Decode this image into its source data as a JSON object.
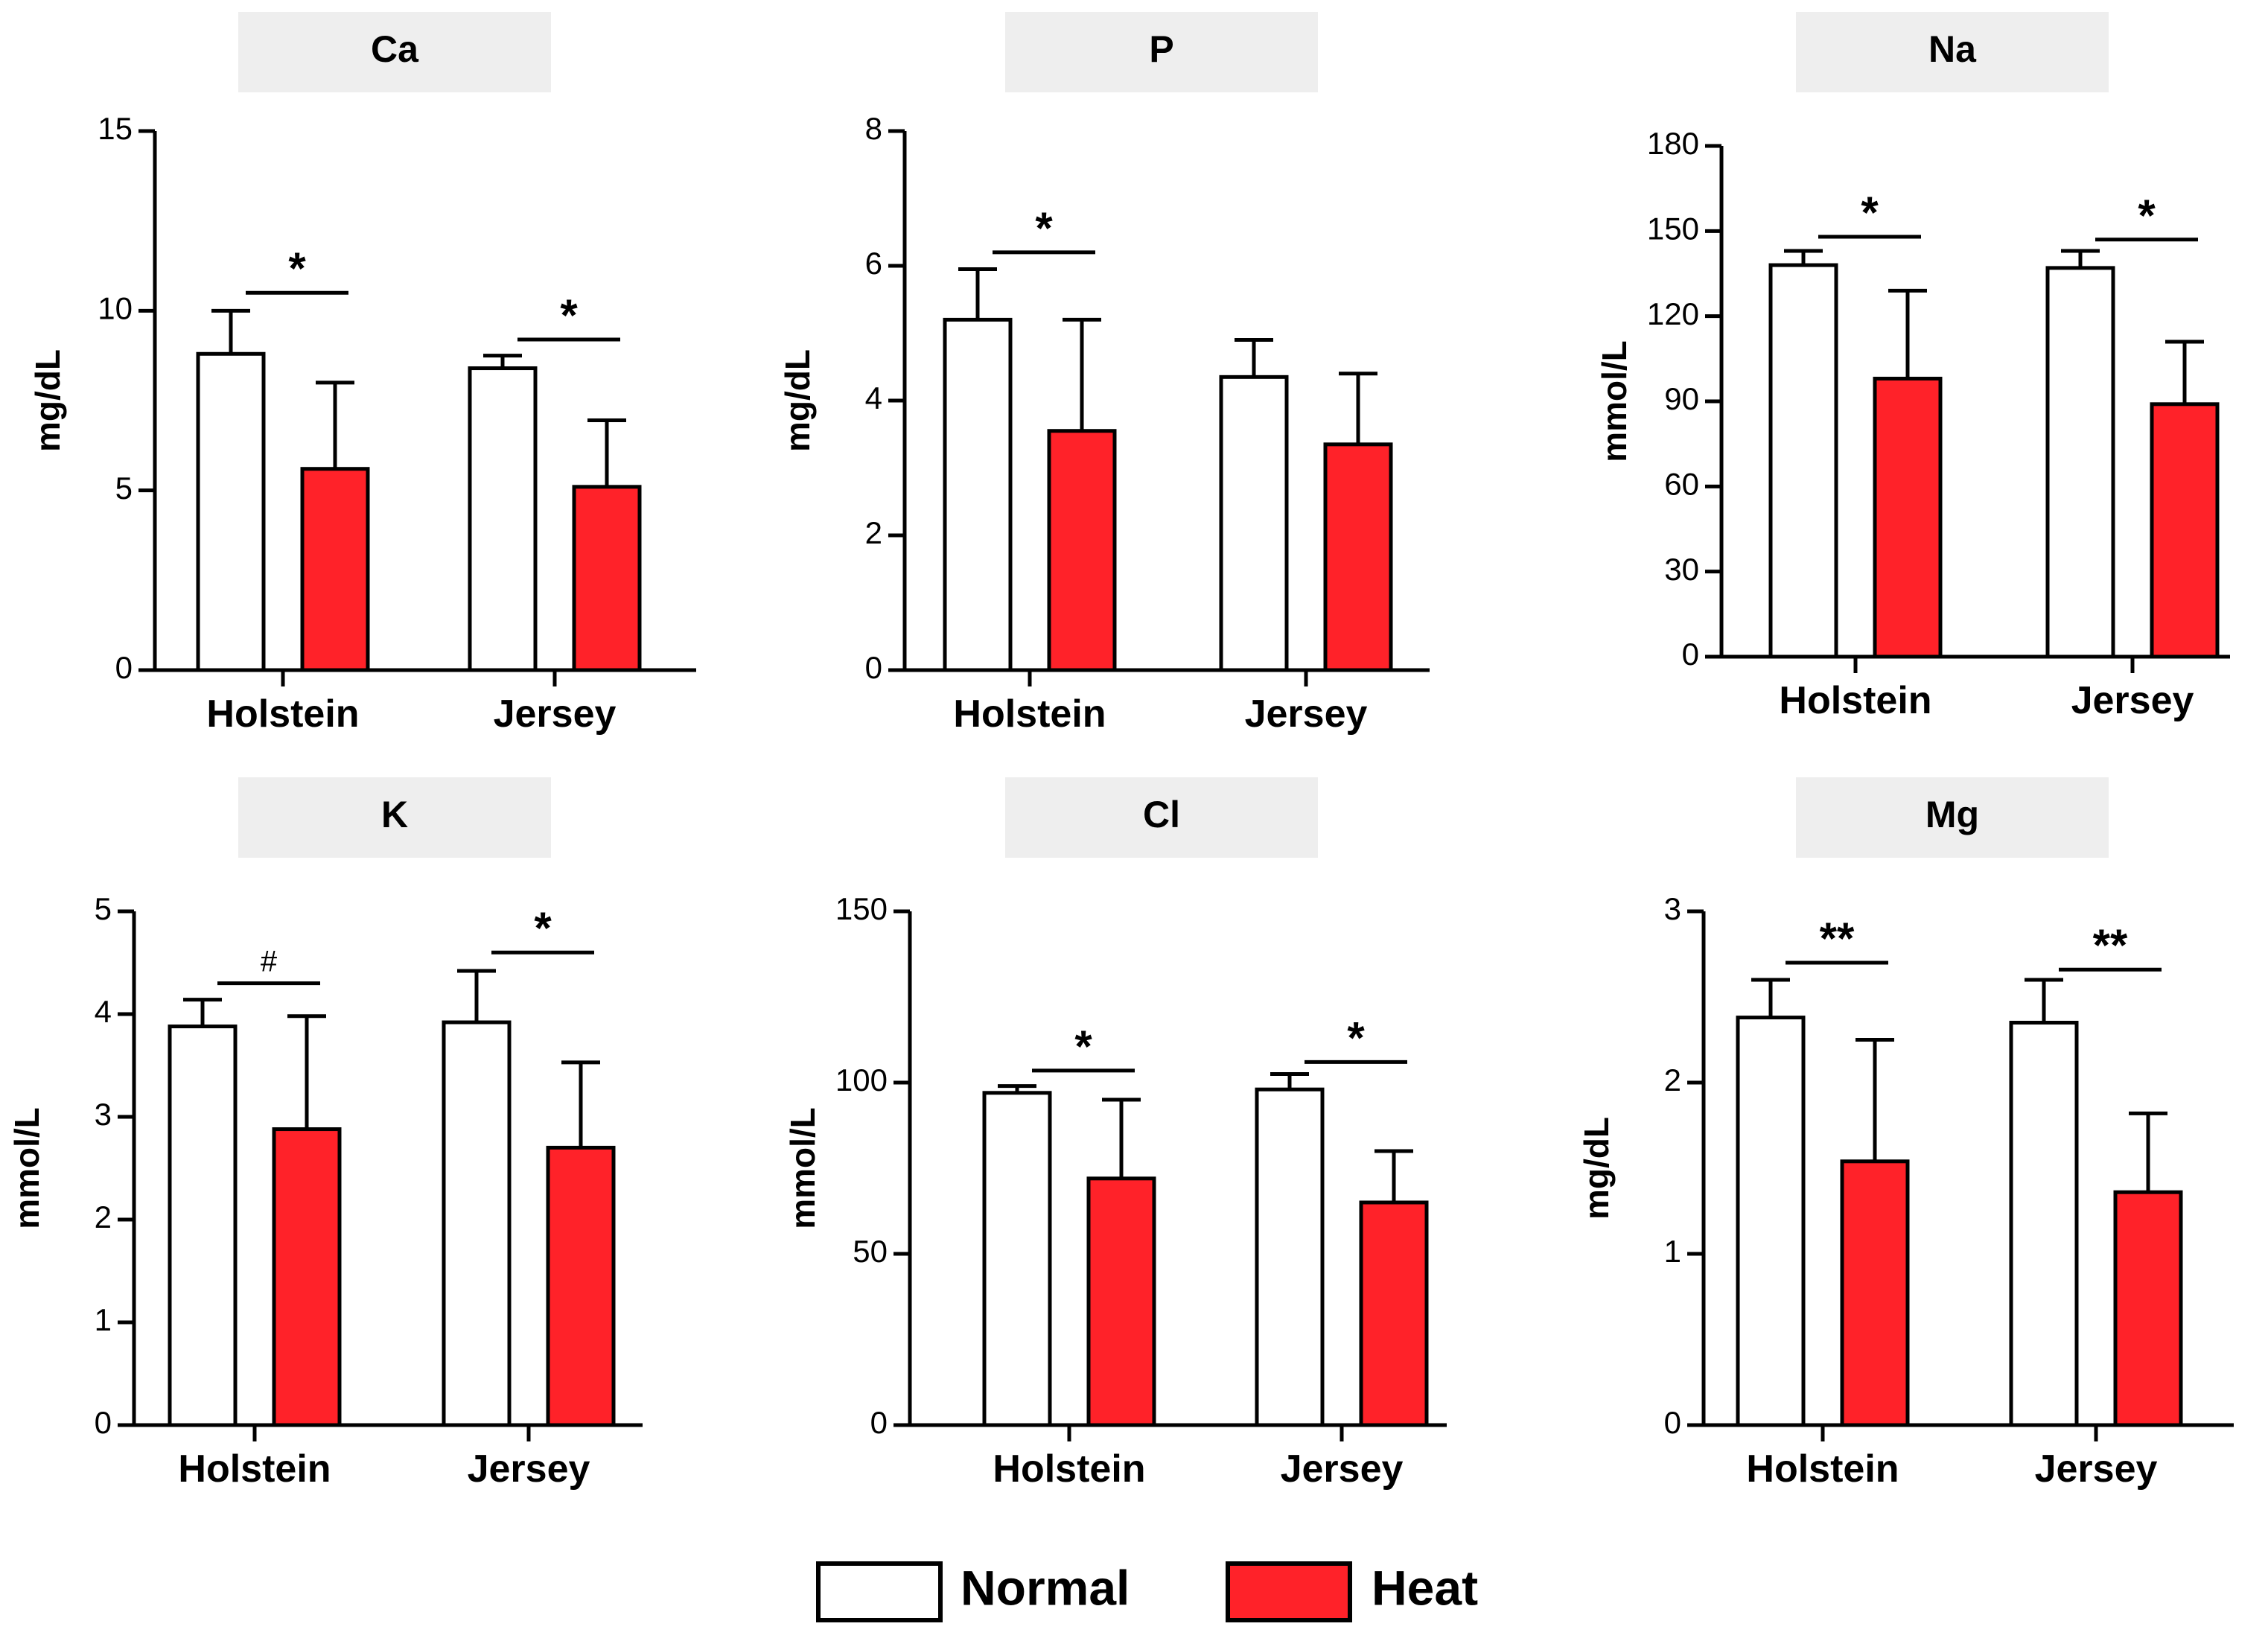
{
  "legend": [
    {
      "label": "Normal",
      "color": "#ffffff"
    },
    {
      "label": "Heat",
      "color": "#ff2229"
    }
  ],
  "colors": {
    "normal": "#ffffff",
    "heat": "#ff2229",
    "stroke": "#000000",
    "title_box": "#eeeeee"
  },
  "chart_data": [
    {
      "type": "bar",
      "title": "Ca",
      "ylabel": "mg/dL",
      "xlabel": "",
      "categories": [
        "Holstein",
        "Jersey"
      ],
      "ylim": [
        0,
        15
      ],
      "yticks": [
        0,
        5,
        10,
        15
      ],
      "series": [
        {
          "name": "Normal",
          "values": [
            8.8,
            8.4
          ],
          "errors": [
            1.2,
            0.35
          ]
        },
        {
          "name": "Heat",
          "values": [
            5.6,
            5.1
          ],
          "errors": [
            2.4,
            1.85
          ]
        }
      ],
      "annotations": [
        {
          "category": 0,
          "label": "*",
          "y": 10.5
        },
        {
          "category": 1,
          "label": "*",
          "y": 9.2
        }
      ]
    },
    {
      "type": "bar",
      "title": "P",
      "ylabel": "mg/dL",
      "xlabel": "",
      "categories": [
        "Holstein",
        "Jersey"
      ],
      "ylim": [
        0,
        8
      ],
      "yticks": [
        0,
        2,
        4,
        6,
        8
      ],
      "series": [
        {
          "name": "Normal",
          "values": [
            5.2,
            4.35
          ],
          "errors": [
            0.75,
            0.55
          ]
        },
        {
          "name": "Heat",
          "values": [
            3.55,
            3.35
          ],
          "errors": [
            1.65,
            1.05
          ]
        }
      ],
      "annotations": [
        {
          "category": 0,
          "label": "*",
          "y": 6.2
        }
      ]
    },
    {
      "type": "bar",
      "title": "Na",
      "ylabel": "mmol/L",
      "xlabel": "",
      "categories": [
        "Holstein",
        "Jersey"
      ],
      "ylim": [
        0,
        180
      ],
      "yticks": [
        0,
        30,
        60,
        90,
        120,
        150,
        180
      ],
      "series": [
        {
          "name": "Normal",
          "values": [
            138,
            137
          ],
          "errors": [
            5,
            6
          ]
        },
        {
          "name": "Heat",
          "values": [
            98,
            89
          ],
          "errors": [
            31,
            22
          ]
        }
      ],
      "annotations": [
        {
          "category": 0,
          "label": "*",
          "y": 148
        },
        {
          "category": 1,
          "label": "*",
          "y": 147
        }
      ]
    },
    {
      "type": "bar",
      "title": "K",
      "ylabel": "mmol/L",
      "xlabel": "",
      "categories": [
        "Holstein",
        "Jersey"
      ],
      "ylim": [
        0,
        5
      ],
      "yticks": [
        0,
        1,
        2,
        3,
        4,
        5
      ],
      "series": [
        {
          "name": "Normal",
          "values": [
            3.88,
            3.92
          ],
          "errors": [
            0.26,
            0.5
          ]
        },
        {
          "name": "Heat",
          "values": [
            2.88,
            2.7
          ],
          "errors": [
            1.1,
            0.83
          ]
        }
      ],
      "annotations": [
        {
          "category": 0,
          "label": "#",
          "y": 4.3
        },
        {
          "category": 1,
          "label": "*",
          "y": 4.6
        }
      ]
    },
    {
      "type": "bar",
      "title": "Cl",
      "ylabel": "mmol/L",
      "xlabel": "",
      "categories": [
        "Holstein",
        "Jersey"
      ],
      "ylim": [
        0,
        150
      ],
      "yticks": [
        0,
        50,
        100,
        150
      ],
      "series": [
        {
          "name": "Normal",
          "values": [
            97,
            98
          ],
          "errors": [
            2,
            4.5
          ]
        },
        {
          "name": "Heat",
          "values": [
            72,
            65
          ],
          "errors": [
            23,
            15
          ]
        }
      ],
      "annotations": [
        {
          "category": 0,
          "label": "*",
          "y": 103.5
        },
        {
          "category": 1,
          "label": "*",
          "y": 106
        }
      ]
    },
    {
      "type": "bar",
      "title": "Mg",
      "ylabel": "mg/dL",
      "xlabel": "",
      "categories": [
        "Holstein",
        "Jersey"
      ],
      "ylim": [
        0,
        3
      ],
      "yticks": [
        0,
        1,
        2,
        3
      ],
      "series": [
        {
          "name": "Normal",
          "values": [
            2.38,
            2.35
          ],
          "errors": [
            0.22,
            0.25
          ]
        },
        {
          "name": "Heat",
          "values": [
            1.54,
            1.36
          ],
          "errors": [
            0.71,
            0.46
          ]
        }
      ],
      "annotations": [
        {
          "category": 0,
          "label": "**",
          "y": 2.7
        },
        {
          "category": 1,
          "label": "**",
          "y": 2.66
        }
      ]
    }
  ]
}
